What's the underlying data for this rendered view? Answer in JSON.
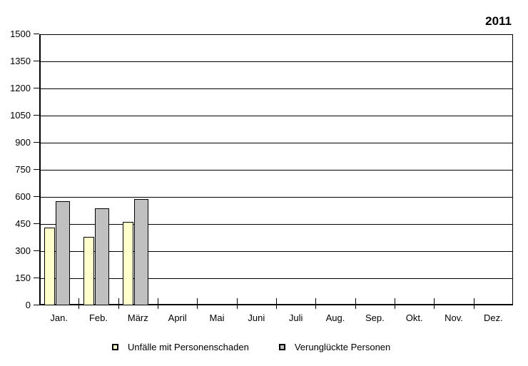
{
  "chart_data": {
    "type": "bar",
    "title": "2011",
    "categories": [
      "Jan.",
      "Feb.",
      "März",
      "April",
      "Mai",
      "Juni",
      "Juli",
      "Aug.",
      "Sep.",
      "Okt.",
      "Nov.",
      "Dez."
    ],
    "series": [
      {
        "key": "unfaelle",
        "name": "Unfälle mit Personenschaden",
        "color": "#FFFFCC",
        "values": [
          430,
          380,
          460,
          null,
          null,
          null,
          null,
          null,
          null,
          null,
          null,
          null
        ]
      },
      {
        "key": "verungluckte",
        "name": "Verunglückte Personen",
        "color": "#C0C0C0",
        "values": [
          578,
          535,
          590,
          null,
          null,
          null,
          null,
          null,
          null,
          null,
          null,
          null
        ]
      }
    ],
    "xlabel": "",
    "ylabel": "",
    "ylim": [
      0,
      1500
    ],
    "yticks": [
      0,
      150,
      300,
      450,
      600,
      750,
      900,
      1050,
      1200,
      1350,
      1500
    ],
    "grid": "horizontal",
    "legend_position": "bottom",
    "axis_color": "#000000",
    "background": "#FFFFFF",
    "bar_border_color": "#000000"
  }
}
